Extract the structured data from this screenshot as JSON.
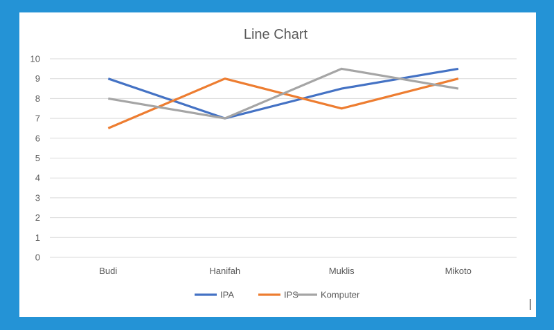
{
  "chart_data": {
    "type": "line",
    "title": "Line Chart",
    "categories": [
      "Budi",
      "Hanifah",
      "Muklis",
      "Mikoto"
    ],
    "series": [
      {
        "name": "IPA",
        "values": [
          9,
          7,
          8.5,
          9.5
        ],
        "color": "#4472c4"
      },
      {
        "name": "IPS",
        "values": [
          6.5,
          9,
          7.5,
          9
        ],
        "color": "#ed7d31"
      },
      {
        "name": "Komputer",
        "values": [
          8,
          7,
          9.5,
          8.5
        ],
        "color": "#a5a5a5"
      }
    ],
    "ylim": [
      0,
      10
    ],
    "yticks": [
      0,
      1,
      2,
      3,
      4,
      5,
      6,
      7,
      8,
      9,
      10
    ],
    "grid": true,
    "legend_position": "bottom"
  }
}
